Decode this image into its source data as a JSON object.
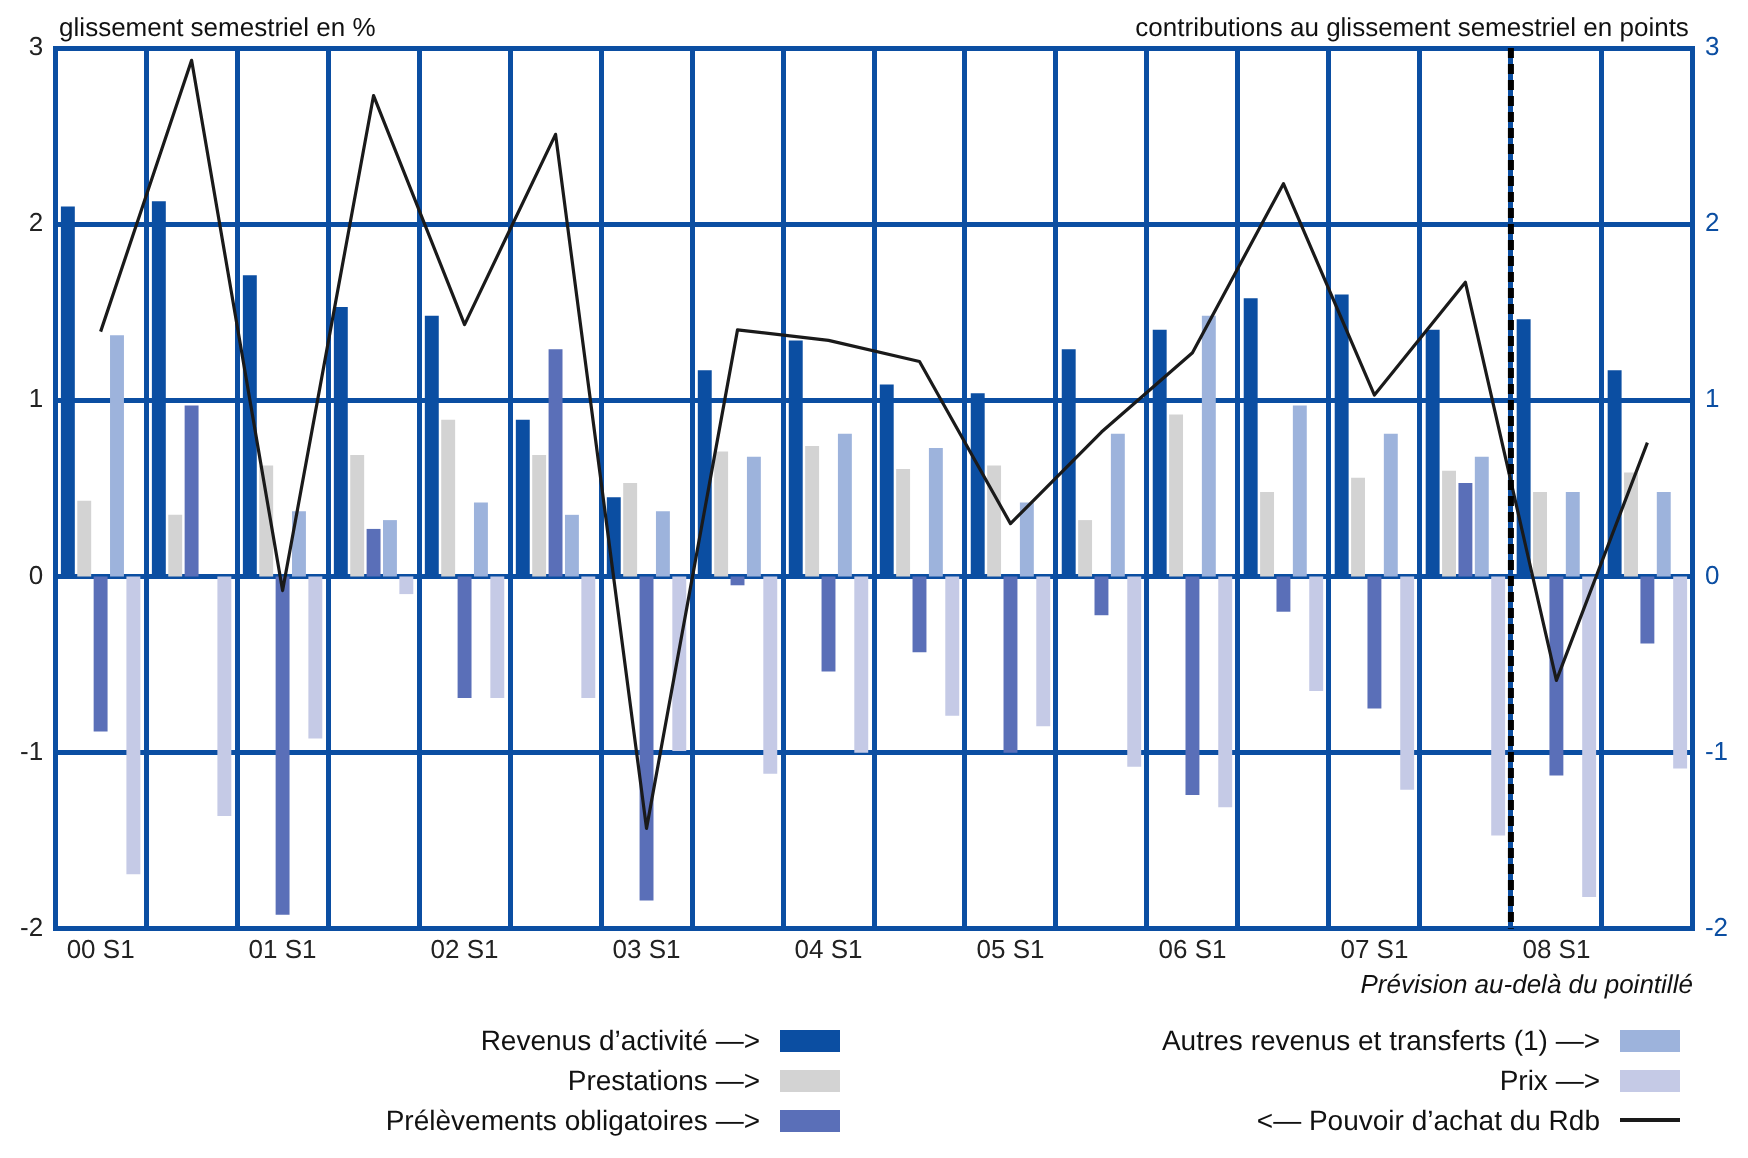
{
  "chart_data": {
    "type": "bar",
    "ylabel": "glissement semestriel en %",
    "y2label": "contributions au glissement semestriel en points",
    "annotations": [
      "Prévision au-delà du pointillé"
    ],
    "categories": [
      "00 S1",
      null,
      "01 S1",
      null,
      "02 S1",
      null,
      "03 S1",
      null,
      "04 S1",
      null,
      "05 S1",
      null,
      "06 S1",
      null,
      "07 S1",
      null,
      "08 S1",
      null
    ],
    "series": [
      {
        "name": "Revenus d’activité —>",
        "color": "#0b4ea2",
        "axis": "y2",
        "values": [
          2.1,
          2.13,
          1.71,
          1.53,
          1.48,
          0.89,
          0.45,
          1.17,
          1.34,
          1.09,
          1.04,
          1.29,
          1.4,
          1.58,
          1.6,
          1.4,
          1.46,
          1.17
        ]
      },
      {
        "name": "Prestations —>",
        "color": "#d3d3d3",
        "axis": "y2",
        "values": [
          0.43,
          0.35,
          0.63,
          0.69,
          0.89,
          0.69,
          0.53,
          0.71,
          0.74,
          0.61,
          0.63,
          0.32,
          0.92,
          0.48,
          0.56,
          0.6,
          0.48,
          0.59
        ]
      },
      {
        "name": "Prélèvements obligatoires —>",
        "color": "#5a6fb8",
        "axis": "y2",
        "values": [
          -0.88,
          0.97,
          -1.92,
          0.27,
          -0.69,
          1.29,
          -1.84,
          -0.05,
          -0.54,
          -0.43,
          -1.0,
          -0.22,
          -1.24,
          -0.2,
          -0.75,
          0.53,
          -1.13,
          -0.38
        ]
      },
      {
        "name": "Autres revenus et transferts (1) —>",
        "color": "#9db3dc",
        "axis": "y2",
        "values": [
          1.37,
          null,
          0.37,
          0.32,
          0.42,
          0.35,
          0.37,
          0.68,
          0.81,
          0.73,
          0.42,
          0.81,
          1.48,
          0.97,
          0.81,
          0.68,
          0.48,
          0.48
        ]
      },
      {
        "name": "Prix —>",
        "color": "#c5cae6",
        "axis": "y2",
        "values": [
          -1.69,
          -1.36,
          -0.92,
          -0.1,
          -0.69,
          -0.69,
          -0.99,
          -1.12,
          -1.0,
          -0.79,
          -0.85,
          -1.08,
          -1.31,
          -0.65,
          -1.21,
          -1.47,
          -1.82,
          -1.09
        ]
      },
      {
        "name": "<— Pouvoir d’achat du Rdb",
        "type": "line",
        "color": "#1a1a1a",
        "axis": "y",
        "values": [
          1.39,
          2.93,
          -0.08,
          2.73,
          1.43,
          2.51,
          -1.43,
          1.4,
          1.34,
          1.22,
          0.3,
          0.82,
          1.27,
          2.23,
          1.03,
          1.67,
          -0.59,
          0.76
        ]
      }
    ],
    "ylim": [
      -2,
      3
    ],
    "yticks": [
      -2,
      -1,
      0,
      1,
      2,
      3
    ],
    "y2lim": [
      -2,
      3
    ],
    "y2ticks": [
      -2,
      -1,
      0,
      1,
      2,
      3
    ],
    "ref_lines": [
      {
        "axis": "x",
        "value": "08 S1",
        "color": "#000000",
        "line_style": "dashed"
      }
    ],
    "grid": true,
    "legend": "bottom"
  }
}
